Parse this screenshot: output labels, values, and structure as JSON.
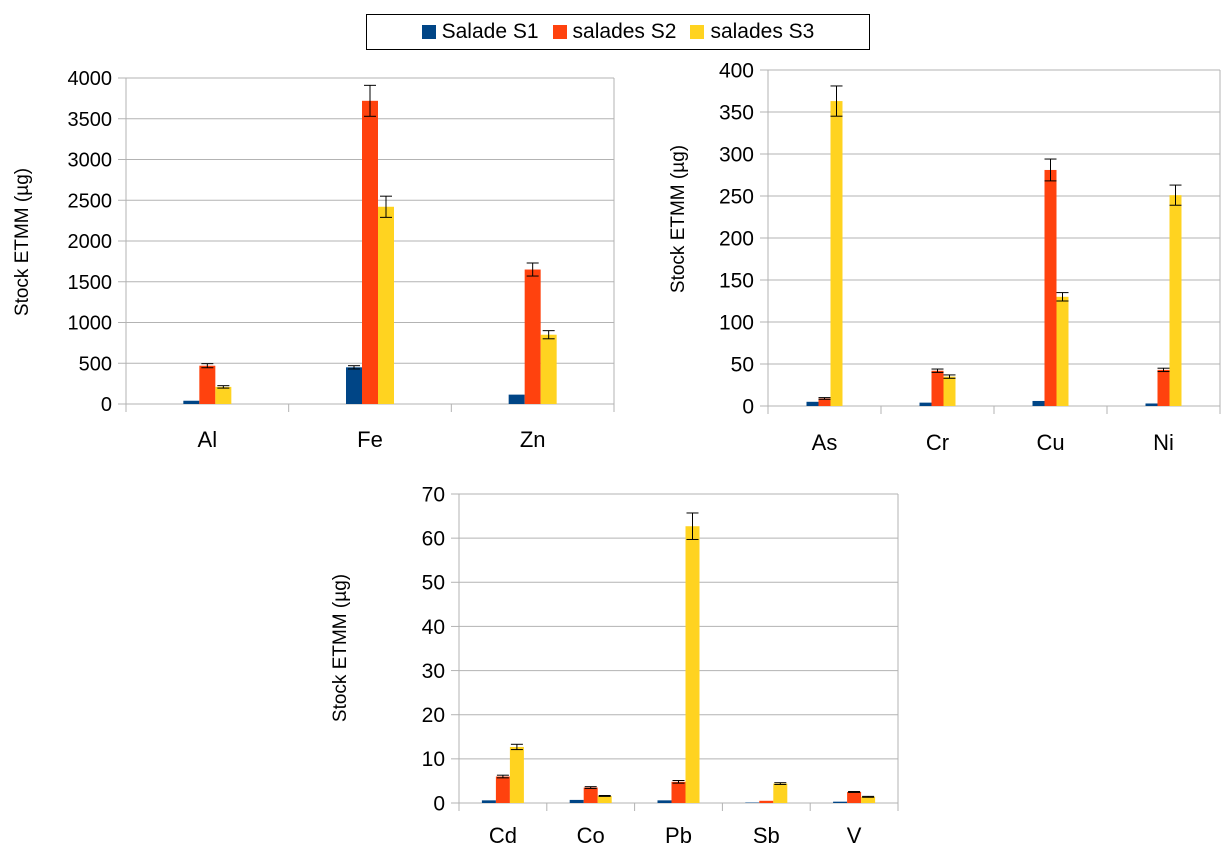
{
  "legend": {
    "items": [
      {
        "label": "Salade S1",
        "color": "#004586"
      },
      {
        "label": "salades S2",
        "color": "#ff420e"
      },
      {
        "label": "salades S3",
        "color": "#ffd320"
      }
    ]
  },
  "chart_data": [
    {
      "type": "bar",
      "categories": [
        "Al",
        "Fe",
        "Zn"
      ],
      "ylabel": "Stock ETMM (µg)",
      "ylim": [
        0,
        4000
      ],
      "yticks": [
        0,
        500,
        1000,
        1500,
        2000,
        2500,
        3000,
        3500,
        4000
      ],
      "grid": true,
      "series": [
        {
          "name": "Salade S1",
          "color": "#004586",
          "values": [
            40,
            450,
            115
          ],
          "errors": [
            0,
            20,
            0
          ]
        },
        {
          "name": "salades S2",
          "color": "#ff420e",
          "values": [
            470,
            3720,
            1650
          ],
          "errors": [
            25,
            190,
            80
          ]
        },
        {
          "name": "salades S3",
          "color": "#ffd320",
          "values": [
            210,
            2420,
            850
          ],
          "errors": [
            15,
            130,
            50
          ]
        }
      ]
    },
    {
      "type": "bar",
      "categories": [
        "As",
        "Cr",
        "Cu",
        "Ni"
      ],
      "ylabel": "Stock ETMM (µg)",
      "ylim": [
        0,
        400
      ],
      "yticks": [
        0,
        50,
        100,
        150,
        200,
        250,
        300,
        350,
        400
      ],
      "grid": true,
      "series": [
        {
          "name": "Salade S1",
          "color": "#004586",
          "values": [
            5,
            4,
            6,
            3
          ],
          "errors": [
            0,
            0,
            0,
            0
          ]
        },
        {
          "name": "salades S2",
          "color": "#ff420e",
          "values": [
            9,
            42,
            281,
            43
          ],
          "errors": [
            1,
            2,
            13,
            2
          ]
        },
        {
          "name": "salades S3",
          "color": "#ffd320",
          "values": [
            363,
            35,
            130,
            251
          ],
          "errors": [
            18,
            2,
            5,
            12
          ]
        }
      ]
    },
    {
      "type": "bar",
      "categories": [
        "Cd",
        "Co",
        "Pb",
        "Sb",
        "V"
      ],
      "ylabel": "Stock ETMM (µg)",
      "ylim": [
        0,
        70
      ],
      "yticks": [
        0,
        10,
        20,
        30,
        40,
        50,
        60,
        70
      ],
      "grid": true,
      "series": [
        {
          "name": "Salade S1",
          "color": "#004586",
          "values": [
            0.6,
            0.7,
            0.6,
            0.1,
            0.3
          ],
          "errors": [
            0,
            0,
            0,
            0,
            0
          ]
        },
        {
          "name": "salades S2",
          "color": "#ff420e",
          "values": [
            6,
            3.5,
            4.8,
            0.5,
            2.5
          ],
          "errors": [
            0.3,
            0.2,
            0.3,
            0,
            0.1
          ]
        },
        {
          "name": "salades S3",
          "color": "#ffd320",
          "values": [
            12.7,
            1.6,
            62.7,
            4.4,
            1.4
          ],
          "errors": [
            0.6,
            0.1,
            3.0,
            0.2,
            0.1
          ]
        }
      ]
    }
  ]
}
